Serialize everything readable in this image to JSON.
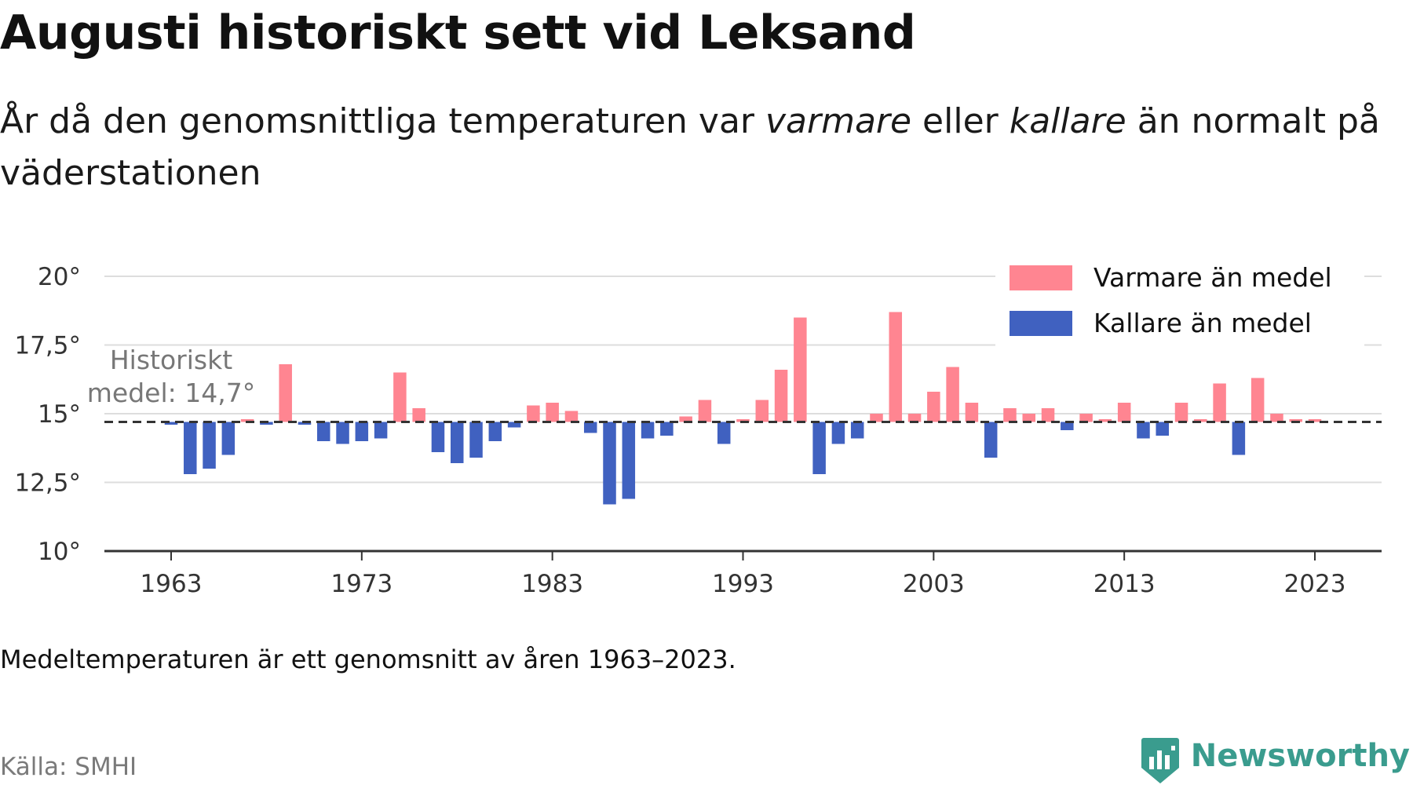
{
  "header": {
    "title": "Augusti historiskt sett vid Leksand",
    "subtitle_part1": "År då den genomsnittliga temperaturen var ",
    "subtitle_em1": "varmare",
    "subtitle_part2": " eller ",
    "subtitle_em2": "kallare",
    "subtitle_part3": " än normalt på väderstationen"
  },
  "footer": {
    "note": "Medeltemperaturen är ett genomsnitt av åren 1963–2023.",
    "source": "Källa: SMHI",
    "brand": "Newsworthy"
  },
  "colors": {
    "warmer": "#ff8591",
    "colder": "#4061c0",
    "grid": "#dddddd",
    "axis": "#333333",
    "baseline": "#333333",
    "brand": "#3a9c8e"
  },
  "chart_data": {
    "type": "bar",
    "baseline": 14.7,
    "baseline_label": [
      "Historiskt",
      "medel: 14,7°"
    ],
    "ylim": [
      10,
      20
    ],
    "y_ticks": [
      10,
      12.5,
      15,
      17.5,
      20
    ],
    "y_tick_labels": [
      "10°",
      "12,5°",
      "15°",
      "17,5°",
      "20°"
    ],
    "x_ticks": [
      1963,
      1973,
      1983,
      1993,
      2003,
      2013,
      2023
    ],
    "x_tick_labels": [
      "1963",
      "1973",
      "1983",
      "1993",
      "2003",
      "2013",
      "2023"
    ],
    "xlim": [
      1959.5,
      2026.5
    ],
    "grid": true,
    "legend": {
      "position": "top-right",
      "items": [
        {
          "key": "warmer",
          "label": "Varmare än medel"
        },
        {
          "key": "colder",
          "label": "Kallare än medel"
        }
      ]
    },
    "x": [
      1963,
      1964,
      1965,
      1966,
      1967,
      1968,
      1969,
      1970,
      1971,
      1972,
      1973,
      1974,
      1975,
      1976,
      1977,
      1978,
      1979,
      1980,
      1981,
      1982,
      1983,
      1984,
      1985,
      1986,
      1987,
      1988,
      1989,
      1990,
      1991,
      1992,
      1993,
      1994,
      1995,
      1996,
      1997,
      1998,
      1999,
      2000,
      2001,
      2002,
      2003,
      2004,
      2005,
      2006,
      2007,
      2008,
      2009,
      2010,
      2011,
      2012,
      2013,
      2014,
      2015,
      2016,
      2017,
      2018,
      2019,
      2020,
      2021,
      2022,
      2023
    ],
    "values": [
      14.6,
      12.8,
      13.0,
      13.5,
      14.8,
      14.6,
      16.8,
      14.6,
      14.0,
      13.9,
      14.0,
      14.1,
      16.5,
      15.2,
      13.6,
      13.2,
      13.4,
      14.0,
      14.5,
      15.3,
      15.4,
      15.1,
      14.3,
      11.7,
      11.9,
      14.1,
      14.2,
      14.9,
      15.5,
      13.9,
      14.8,
      15.5,
      16.6,
      18.5,
      12.8,
      13.9,
      14.1,
      15.0,
      18.7,
      15.0,
      15.8,
      16.7,
      15.4,
      13.4,
      15.2,
      15.0,
      15.2,
      14.4,
      15.0,
      14.8,
      15.4,
      14.1,
      14.2,
      15.4,
      14.8,
      16.1,
      13.5,
      16.3,
      15.0,
      14.8,
      14.8
    ]
  }
}
